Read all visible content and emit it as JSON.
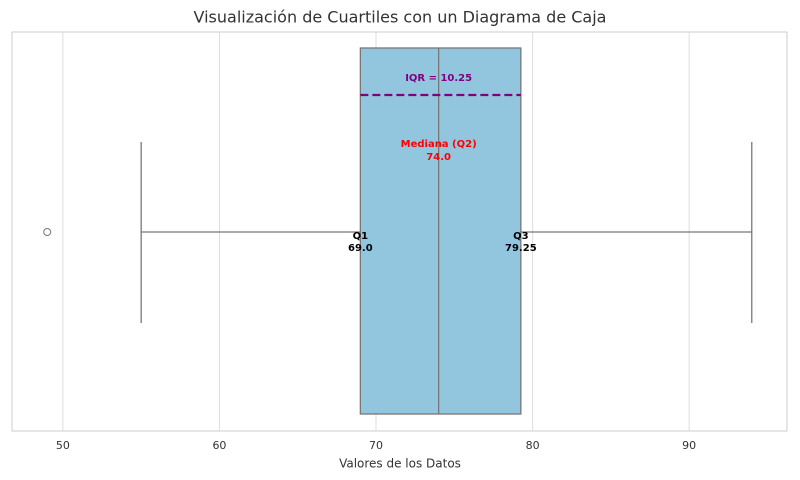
{
  "chart_data": {
    "type": "boxplot",
    "title": "Visualización de Cuartiles con un Diagrama de Caja",
    "x_label": "Valores de los Datos",
    "box": {
      "whislo": 55,
      "q1": 69,
      "med": 74,
      "q3": 79.25,
      "whishi": 94,
      "fliers": [
        49
      ],
      "color": "#92c6df"
    },
    "annotations": {
      "q1": {
        "name": "Q1",
        "label": "69.0"
      },
      "med": {
        "name": "Mediana (Q2)",
        "label": "74.0",
        "color": "#ff0000"
      },
      "q3": {
        "name": "Q3",
        "label": "79.25"
      },
      "iqr": {
        "label": "IQR = 10.25",
        "color": "#800080"
      }
    },
    "xlim": [
      46.75,
      96.25
    ],
    "xticks": [
      50,
      60,
      70,
      80,
      90
    ],
    "grid": true
  }
}
